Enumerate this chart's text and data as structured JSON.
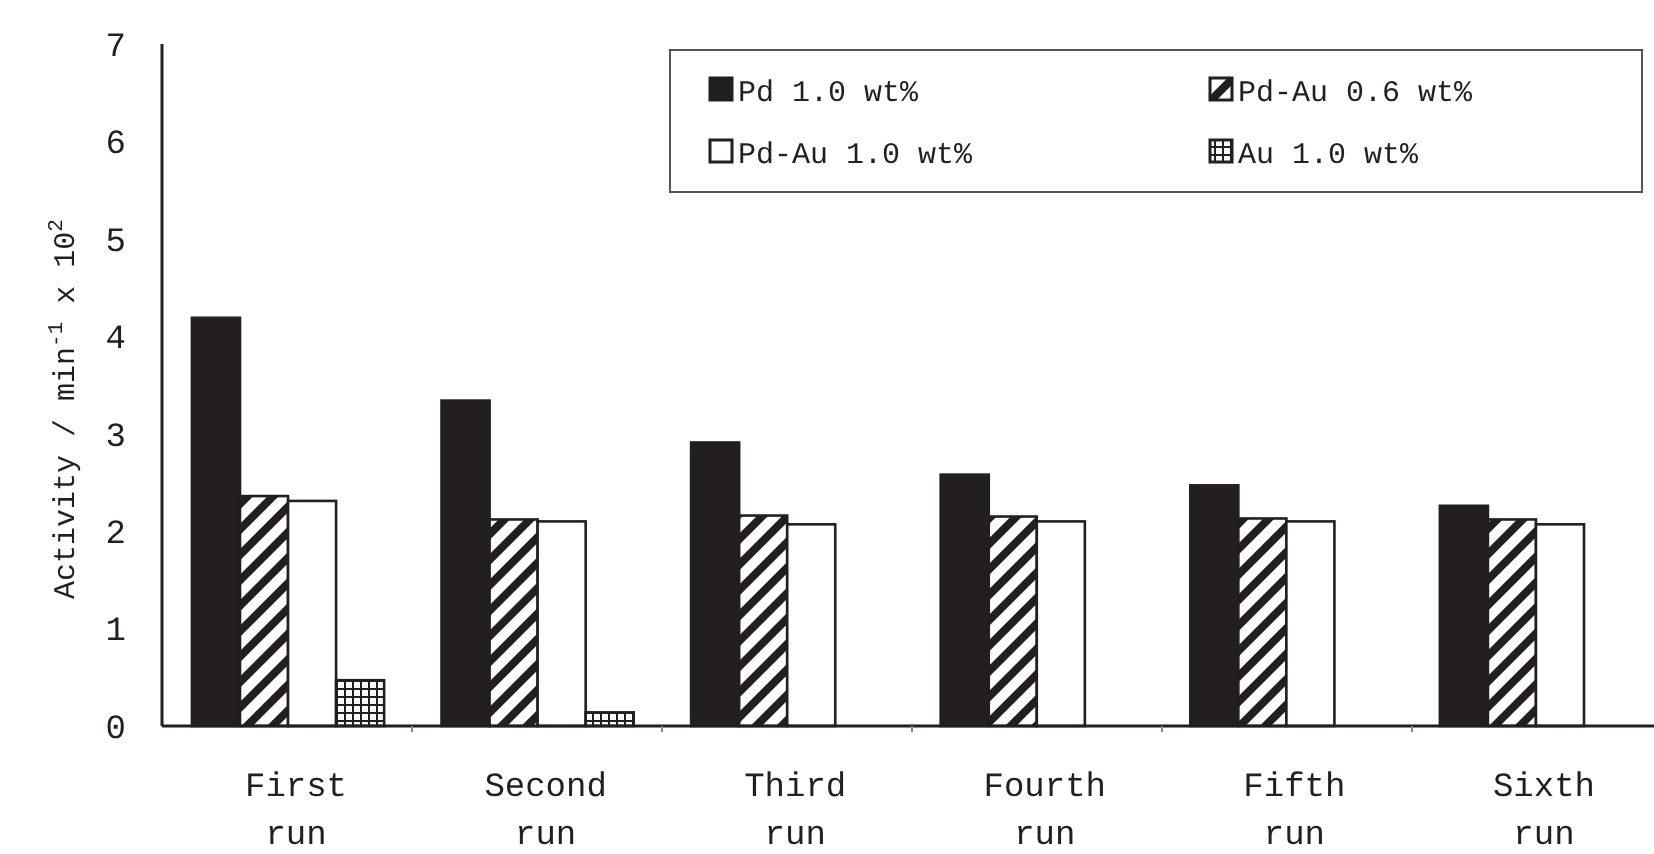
{
  "chart_data": {
    "type": "bar",
    "ylabel": "Activity / min$^{-1}$ x 10$^{2}$",
    "categories": [
      "First run",
      "Second run",
      "Third run",
      "Fourth run",
      "Fifth run",
      "Sixth run"
    ],
    "series": [
      {
        "name": "Pd 1.0 wt%",
        "color": "#231f20",
        "values": [
          4.19,
          3.34,
          2.91,
          2.58,
          2.47,
          2.26
        ]
      },
      {
        "name": "Pd-Au 0.6 wt%",
        "color": "#231f20",
        "values": [
          2.36,
          2.12,
          2.16,
          2.15,
          2.13,
          2.12
        ]
      },
      {
        "name": "Pd-Au 1.0 wt%",
        "color": "#ffffff",
        "values": [
          2.31,
          2.1,
          2.07,
          2.1,
          2.1,
          2.07
        ]
      },
      {
        "name": "Au 1.0 wt%",
        "color": "#231f20",
        "values": [
          0.47,
          0.14,
          null,
          null,
          null,
          null
        ]
      }
    ],
    "ylim": [
      0,
      7
    ],
    "yticks": [
      0,
      1,
      2,
      3,
      4,
      5,
      6,
      7
    ],
    "legend": "top right"
  }
}
